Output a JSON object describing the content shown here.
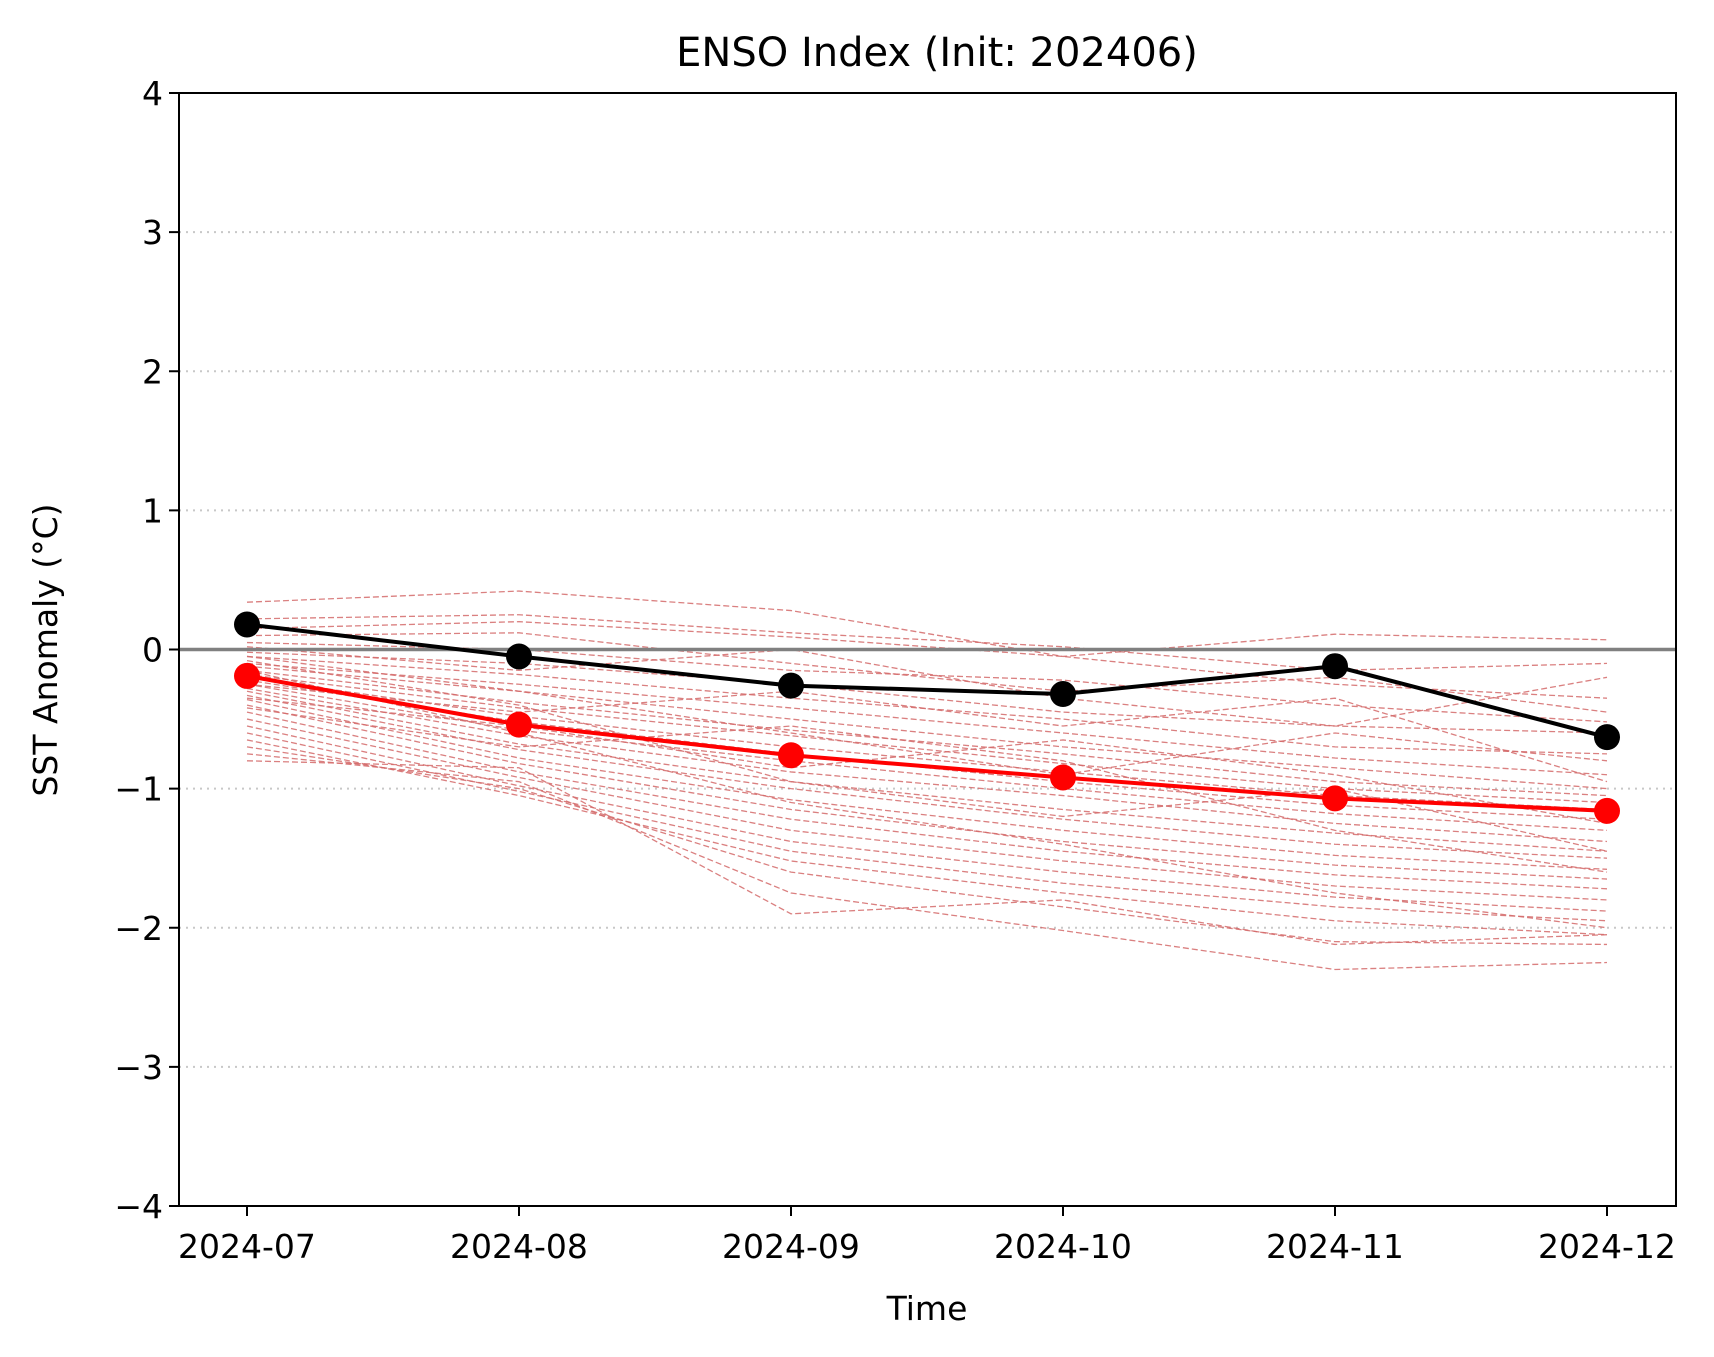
{
  "chart_data": {
    "type": "line",
    "title": "ENSO Index (Init: 202406)",
    "xlabel": "Time",
    "ylabel": "SST Anomaly (°C)",
    "x": [
      "2024-07",
      "2024-08",
      "2024-09",
      "2024-10",
      "2024-11",
      "2024-12"
    ],
    "ylim": [
      -4,
      4
    ],
    "yticks": [
      -4,
      -3,
      -2,
      -1,
      0,
      1,
      2,
      3,
      4
    ],
    "ytick_labels": [
      "−4",
      "−3",
      "−2",
      "−1",
      "0",
      "1",
      "2",
      "3",
      "4"
    ],
    "grid": "horizontal dotted",
    "reference_line": {
      "y": 0,
      "color": "#808080"
    },
    "series": [
      {
        "role": "observed",
        "color": "#000000",
        "values": [
          0.18,
          -0.05,
          -0.26,
          -0.32,
          -0.12,
          -0.63
        ]
      },
      {
        "role": "ensemble mean",
        "color": "#ff0000",
        "values": [
          -0.19,
          -0.54,
          -0.76,
          -0.92,
          -1.07,
          -1.16
        ]
      }
    ],
    "ensemble": {
      "color": "#d46a6a",
      "style": "dashed",
      "members": [
        [
          0.34,
          0.42,
          0.28,
          -0.05,
          0.11,
          0.07
        ],
        [
          0.22,
          0.25,
          0.12,
          0.02,
          -0.15,
          -0.1
        ],
        [
          0.15,
          0.2,
          0.09,
          -0.05,
          -0.25,
          -0.35
        ],
        [
          0.1,
          0.12,
          -0.1,
          -0.3,
          -0.2,
          -0.45
        ],
        [
          0.05,
          0.0,
          -0.15,
          -0.22,
          -0.4,
          -0.52
        ],
        [
          -0.02,
          -0.1,
          -0.25,
          -0.45,
          -0.55,
          -0.6
        ],
        [
          -0.05,
          -0.18,
          -0.35,
          -0.5,
          -0.7,
          -0.75
        ],
        [
          -0.1,
          -0.25,
          -0.42,
          -0.6,
          -0.78,
          -0.9
        ],
        [
          -0.12,
          -0.3,
          -0.5,
          -0.7,
          -0.85,
          -1.0
        ],
        [
          -0.15,
          -0.38,
          -0.58,
          -0.75,
          -0.95,
          -1.05
        ],
        [
          -0.18,
          -0.42,
          -0.62,
          -0.82,
          -1.0,
          -1.1
        ],
        [
          -0.2,
          -0.48,
          -0.7,
          -0.88,
          -1.05,
          -1.15
        ],
        [
          -0.22,
          -0.52,
          -0.75,
          -0.95,
          -1.12,
          -1.22
        ],
        [
          -0.25,
          -0.58,
          -0.8,
          -1.0,
          -1.18,
          -1.3
        ],
        [
          -0.28,
          -0.62,
          -0.88,
          -1.05,
          -1.25,
          -1.38
        ],
        [
          -0.3,
          -0.68,
          -0.95,
          -1.15,
          -1.32,
          -1.45
        ],
        [
          -0.33,
          -0.72,
          -1.0,
          -1.22,
          -1.4,
          -1.5
        ],
        [
          -0.36,
          -0.78,
          -1.08,
          -1.3,
          -1.48,
          -1.58
        ],
        [
          -0.4,
          -0.82,
          -1.15,
          -1.38,
          -1.55,
          -1.65
        ],
        [
          -0.45,
          -0.88,
          -1.22,
          -1.45,
          -1.62,
          -1.72
        ],
        [
          -0.5,
          -0.92,
          -1.3,
          -1.52,
          -1.7,
          -1.8
        ],
        [
          -0.55,
          -0.98,
          -1.38,
          -1.6,
          -1.78,
          -1.88
        ],
        [
          -0.6,
          -1.02,
          -1.45,
          -1.68,
          -1.85,
          -1.95
        ],
        [
          -0.65,
          -1.05,
          -1.52,
          -1.75,
          -1.95,
          -2.05
        ],
        [
          -0.7,
          -1.0,
          -1.6,
          -1.85,
          -2.1,
          -2.12
        ],
        [
          -0.75,
          -0.95,
          -1.75,
          -2.02,
          -2.3,
          -2.25
        ],
        [
          -0.8,
          -0.85,
          -1.9,
          -1.8,
          -2.12,
          -2.05
        ],
        [
          -0.05,
          -0.3,
          -0.6,
          -0.9,
          -0.6,
          -0.8
        ],
        [
          0.02,
          -0.15,
          0.0,
          -0.35,
          -0.55,
          -0.2
        ],
        [
          -0.25,
          -0.45,
          -0.3,
          -0.55,
          -0.35,
          -0.95
        ],
        [
          -0.35,
          -0.55,
          -0.85,
          -0.65,
          -0.9,
          -1.25
        ],
        [
          -0.08,
          -0.4,
          -0.95,
          -1.2,
          -1.0,
          -1.45
        ],
        [
          -0.42,
          -0.7,
          -0.55,
          -0.8,
          -1.3,
          -1.6
        ],
        [
          -0.15,
          -0.6,
          -1.1,
          -1.4,
          -1.75,
          -2.0
        ]
      ]
    }
  }
}
